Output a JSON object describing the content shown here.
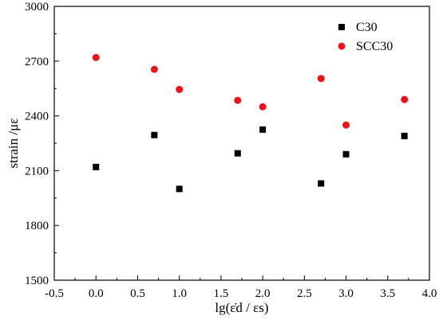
{
  "chart_data": {
    "type": "scatter",
    "xlabel": "lg(ε̇d / εs)",
    "ylabel": "strain /με",
    "xlim": [
      -0.5,
      4.0
    ],
    "ylim": [
      1500,
      3000
    ],
    "xticks": [
      "-0.5",
      "0.0",
      "0.5",
      "1.0",
      "1.5",
      "2.0",
      "2.5",
      "3.0",
      "3.5",
      "4.0"
    ],
    "yticks": [
      "1500",
      "1800",
      "2100",
      "2400",
      "2700",
      "3000"
    ],
    "grid": false,
    "legend_position": "top-right",
    "series": [
      {
        "name": "C30",
        "marker": "square",
        "color": "#000000",
        "points": [
          {
            "x": 0.0,
            "y": 2120
          },
          {
            "x": 0.7,
            "y": 2295
          },
          {
            "x": 1.0,
            "y": 2000
          },
          {
            "x": 1.7,
            "y": 2195
          },
          {
            "x": 2.0,
            "y": 2325
          },
          {
            "x": 2.7,
            "y": 2030
          },
          {
            "x": 3.0,
            "y": 2190
          },
          {
            "x": 3.7,
            "y": 2290
          }
        ]
      },
      {
        "name": "SCC30",
        "marker": "circle",
        "color": "#e8141b",
        "points": [
          {
            "x": 0.0,
            "y": 2720
          },
          {
            "x": 0.7,
            "y": 2655
          },
          {
            "x": 1.0,
            "y": 2545
          },
          {
            "x": 1.7,
            "y": 2485
          },
          {
            "x": 2.0,
            "y": 2450
          },
          {
            "x": 2.7,
            "y": 2605
          },
          {
            "x": 3.0,
            "y": 2350
          },
          {
            "x": 3.7,
            "y": 2490
          }
        ]
      }
    ]
  }
}
